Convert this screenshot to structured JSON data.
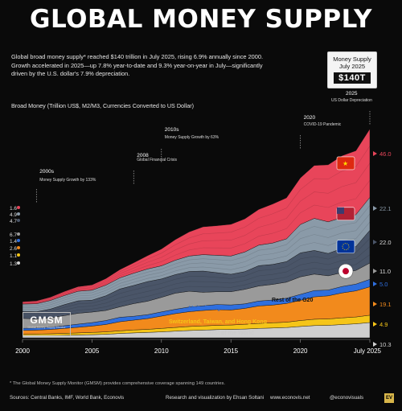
{
  "title": "GLOBAL MONEY SUPPLY",
  "intro": "Global broad money supply* reached $140 trillion in July 2025, rising 6.9% annually since 2000. Growth accelerated in 2025—up 7.8% year-to-date and 9.3% year-on-year in July—significantly driven by the U.S. dollar's 7.9% depreciation.",
  "money_box": {
    "line1": "Money Supply",
    "line2": "July 2025",
    "value": "$140T"
  },
  "axis_title": "Broad Money (Trillion US$, M2/M3, Currencies Converted to US Dollar)",
  "logo": {
    "name": "GMSM",
    "sub": "Global Money Supply Monitor"
  },
  "footnote": "* The Global Money Supply Monitor (GMSM) provides comprehensive coverage spanning 149 countries.",
  "sources": "Sources: Central Banks, IMF, World Bank, Econovis",
  "credit": "Research and visualization by Ehsan Soltani",
  "website": "www.econovis.net",
  "handle": "@econovisuals",
  "badge": "EV",
  "colors": {
    "china": "#e8455a",
    "us": "#8a9aa8",
    "eurozone": "#4a5568",
    "japan": "#9a9a9a",
    "uk": "#2f6fde",
    "g20": "#f28a1c",
    "swiss": "#f5c518",
    "row": "#cfcfcf"
  },
  "chart_data": {
    "type": "area",
    "x": [
      2000,
      2001,
      2002,
      2003,
      2004,
      2005,
      2006,
      2007,
      2008,
      2009,
      2010,
      2011,
      2012,
      2013,
      2014,
      2015,
      2016,
      2017,
      2018,
      2019,
      2020,
      2021,
      2022,
      2023,
      2024,
      2025
    ],
    "x_ticks": [
      "2000",
      "2005",
      "2010",
      "2015",
      "2020",
      "July 2025"
    ],
    "ylabel": "Broad Money (Trillion US$, M2/M3, Currencies Converted to US Dollar)",
    "series": [
      {
        "name": "Rest of the World",
        "start": 1.3,
        "end": 10.3,
        "values": [
          1.3,
          1.4,
          1.5,
          1.7,
          1.9,
          2.1,
          2.4,
          2.9,
          3.3,
          3.6,
          4.0,
          4.5,
          4.9,
          5.2,
          5.5,
          5.6,
          5.9,
          6.3,
          6.6,
          6.9,
          7.6,
          8.2,
          8.4,
          8.9,
          9.4,
          10.3
        ]
      },
      {
        "name": "Switzerland, Taiwan, and Hong Kong",
        "start": 1.1,
        "end": 4.9,
        "values": [
          1.1,
          1.1,
          1.2,
          1.3,
          1.4,
          1.5,
          1.6,
          1.8,
          2.0,
          2.1,
          2.3,
          2.5,
          2.7,
          2.8,
          2.9,
          3.0,
          3.2,
          3.4,
          3.5,
          3.6,
          4.0,
          4.3,
          4.3,
          4.5,
          4.6,
          4.9
        ]
      },
      {
        "name": "Rest of the G20",
        "start": 2.6,
        "end": 19.1,
        "values": [
          2.6,
          2.7,
          2.9,
          3.3,
          3.8,
          4.3,
          5.0,
          6.1,
          6.6,
          7.2,
          8.3,
          9.3,
          10.0,
          10.4,
          10.6,
          10.1,
          10.7,
          11.7,
          11.9,
          12.6,
          13.6,
          15.0,
          15.5,
          16.8,
          17.6,
          19.1
        ]
      },
      {
        "name": "United Kingdom",
        "start": 1.4,
        "end": 5.0,
        "values": [
          1.4,
          1.4,
          1.6,
          1.8,
          2.1,
          2.3,
          2.6,
          3.0,
          2.6,
          2.7,
          2.8,
          2.9,
          3.1,
          3.1,
          3.4,
          3.4,
          3.0,
          3.3,
          3.4,
          3.5,
          4.0,
          4.3,
          3.9,
          4.3,
          4.5,
          5.0
        ]
      },
      {
        "name": "Japan",
        "start": 6.7,
        "end": 11.0,
        "values": [
          6.7,
          6.1,
          6.2,
          6.8,
          7.3,
          7.1,
          6.8,
          7.0,
          8.5,
          9.0,
          9.8,
          10.8,
          10.6,
          9.1,
          8.6,
          8.9,
          9.8,
          10.1,
          10.5,
          10.8,
          11.8,
          11.0,
          9.6,
          9.3,
          9.2,
          11.0
        ]
      },
      {
        "name": "Eurozone",
        "start": 4.7,
        "end": 22.0,
        "values": [
          4.7,
          4.8,
          5.9,
          7.4,
          8.4,
          8.0,
          9.9,
          12.0,
          12.2,
          13.2,
          12.4,
          12.5,
          13.3,
          14.3,
          12.8,
          11.7,
          11.9,
          13.7,
          13.4,
          13.8,
          16.1,
          15.9,
          15.0,
          16.3,
          16.0,
          22.0
        ]
      },
      {
        "name": "United States",
        "start": 4.9,
        "end": 22.1,
        "values": [
          4.9,
          5.4,
          5.8,
          6.1,
          6.4,
          6.7,
          7.1,
          7.5,
          8.2,
          8.5,
          8.8,
          9.7,
          10.4,
          11.0,
          11.7,
          12.3,
          13.2,
          13.8,
          14.4,
          15.3,
          19.1,
          21.6,
          21.3,
          20.8,
          21.5,
          22.1
        ]
      },
      {
        "name": "China",
        "start": 1.6,
        "end": 46.0,
        "values": [
          1.6,
          1.9,
          2.2,
          2.7,
          3.1,
          3.6,
          4.4,
          5.5,
          7.0,
          8.9,
          11.3,
          13.8,
          16.2,
          18.7,
          19.9,
          21.3,
          22.3,
          24.0,
          26.2,
          27.6,
          31.3,
          35.6,
          38.3,
          41.5,
          43.0,
          46.0
        ]
      }
    ],
    "end_labels": [
      "46.0",
      "22.1",
      "22.0",
      "11.0",
      "5.0",
      "19.1",
      "4.9",
      "10.3"
    ],
    "start_labels": [
      "1.6",
      "4.9",
      "4.7",
      "6.7",
      "1.4",
      "2.6",
      "1.1",
      "1.3"
    ],
    "annotations": [
      {
        "year": 2001,
        "label": "2000s",
        "text": "Money Supply Growth by 133%"
      },
      {
        "year": 2008,
        "label": "2008",
        "text": "Global Financial Crisis"
      },
      {
        "year": 2010,
        "label": "2010s",
        "text": "Money Supply Growth by 63%"
      },
      {
        "year": 2020,
        "label": "2020",
        "text": "COVID-19 Pandemic"
      },
      {
        "year": 2025,
        "label": "2025",
        "text": "US Dollar Depreciation"
      }
    ]
  }
}
